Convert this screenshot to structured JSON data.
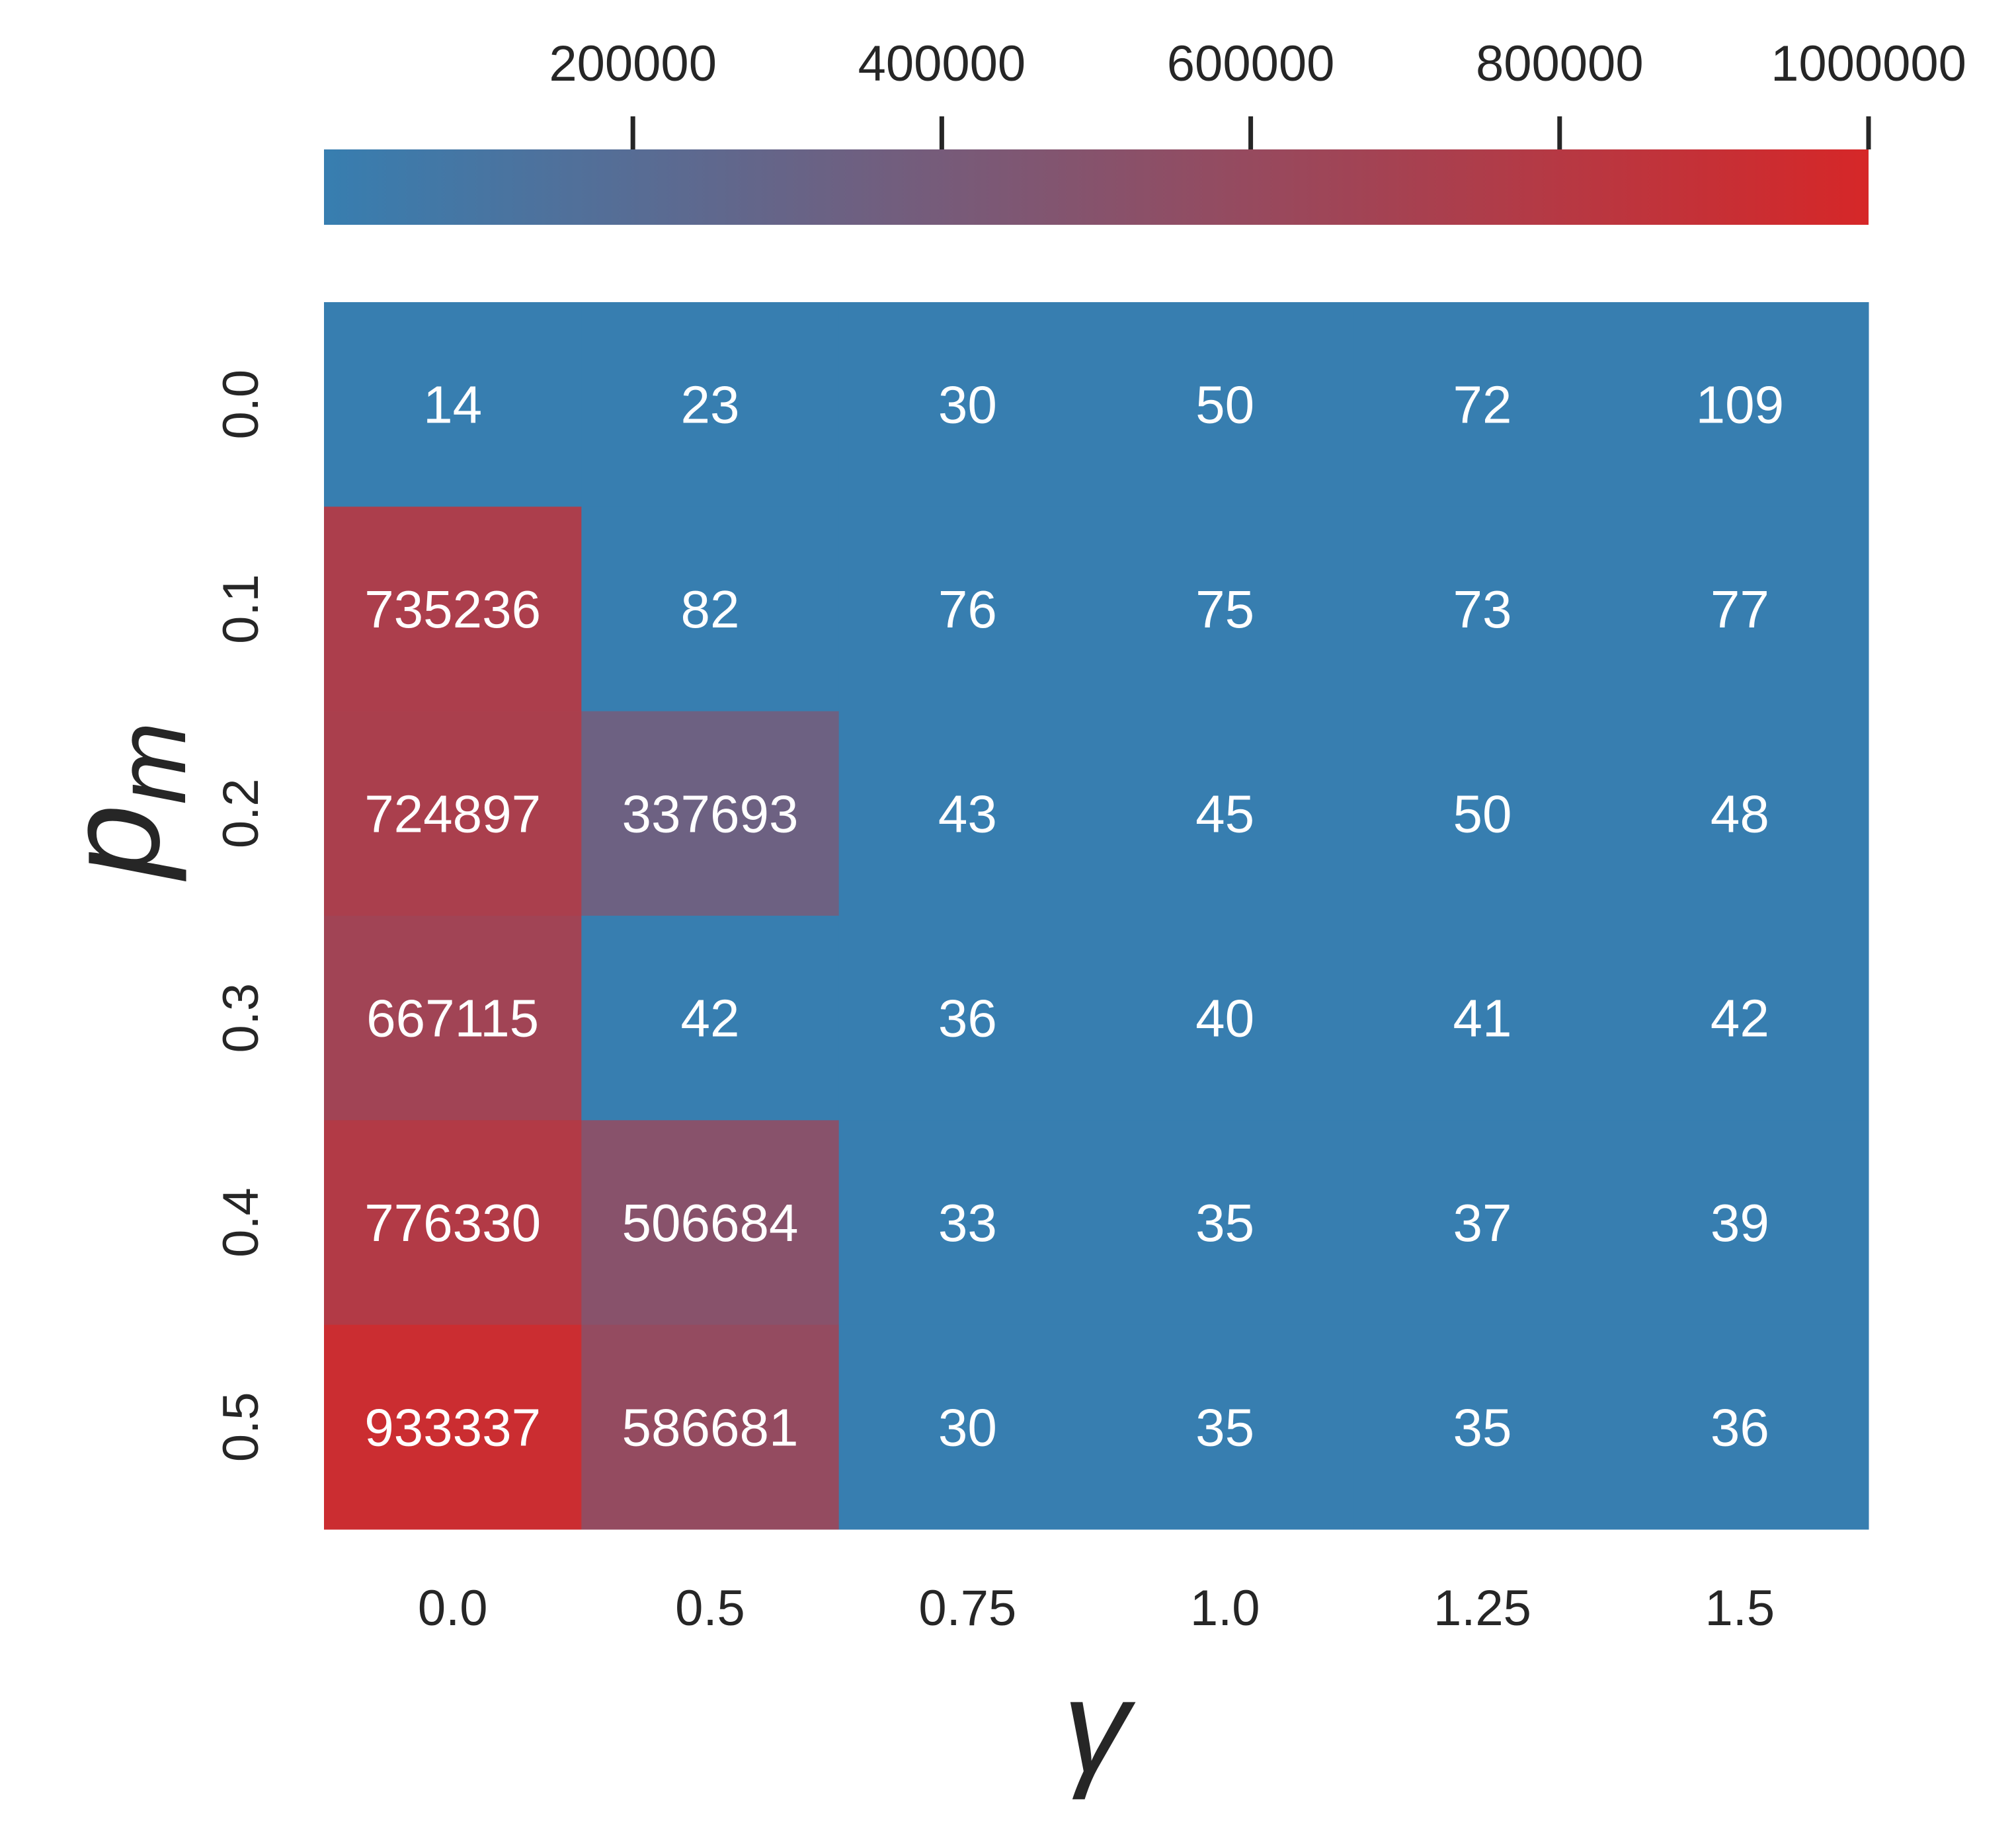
{
  "chart_data": {
    "type": "heatmap",
    "x_categories": [
      "0.0",
      "0.5",
      "0.75",
      "1.0",
      "1.25",
      "1.5"
    ],
    "y_categories": [
      "0.0",
      "0.1",
      "0.2",
      "0.3",
      "0.4",
      "0.5"
    ],
    "values": [
      [
        14,
        23,
        30,
        50,
        72,
        109
      ],
      [
        735236,
        82,
        76,
        75,
        73,
        77
      ],
      [
        724897,
        337693,
        43,
        45,
        50,
        48
      ],
      [
        667115,
        42,
        36,
        40,
        41,
        42
      ],
      [
        776330,
        506684,
        33,
        35,
        37,
        39
      ],
      [
        933337,
        586681,
        30,
        35,
        35,
        36
      ]
    ],
    "xlabel": "γ",
    "ylabel_base": "p",
    "ylabel_subscript": "m",
    "colorbar": {
      "min": 14,
      "max": 1000000,
      "ticks": [
        200000,
        400000,
        600000,
        800000,
        1000000
      ],
      "tick_labels": [
        "200000",
        "400000",
        "600000",
        "800000",
        "1000000"
      ],
      "position": "top",
      "low_color": "#377eb0",
      "high_color": "#d62728"
    },
    "annotations": true,
    "grid": false
  }
}
